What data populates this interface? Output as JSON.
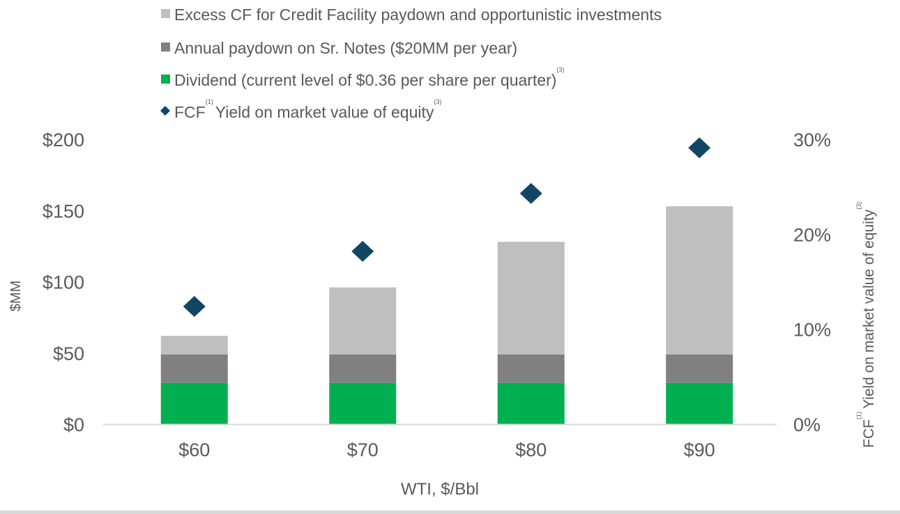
{
  "chart_data": {
    "type": "bar",
    "stacked": true,
    "xlabel": "WTI, $/Bbl",
    "ylabel": "$MM",
    "y2label": {
      "main": "FCF",
      "sup1": "(1)",
      "rest": "Yield on market value of equity",
      "sup3": "(3)"
    },
    "categories": [
      "$60",
      "$70",
      "$80",
      "$90"
    ],
    "ylim": [
      0,
      200
    ],
    "yticks": [
      "$0",
      "$50",
      "$100",
      "$150",
      "$200"
    ],
    "y2lim": [
      0,
      30
    ],
    "y2ticks": [
      "0%",
      "10%",
      "20%",
      "30%"
    ],
    "grid": false,
    "legend_position": "top",
    "series": [
      {
        "name": "Dividend (current level of $0.36 per share per quarter)",
        "sup": "(3)",
        "kind": "bar",
        "color": "#00b050",
        "values": [
          29,
          29,
          29,
          29
        ]
      },
      {
        "name": "Annual paydown on Sr. Notes ($20MM per year)",
        "kind": "bar",
        "color": "#808080",
        "values": [
          20,
          20,
          20,
          20
        ]
      },
      {
        "name": "Excess CF for Credit Facility paydown and opportunistic investments",
        "kind": "bar",
        "color": "#bfbfbf",
        "values": [
          13,
          47,
          79,
          104
        ]
      },
      {
        "name_pre": "FCF",
        "sup1": "(1)",
        "name_post": "Yield on market value of equity",
        "sup": "(3)",
        "kind": "scatter",
        "axis": "right",
        "marker": "diamond",
        "color": "#114663",
        "values": [
          12.4,
          18.2,
          24.3,
          29.1
        ]
      }
    ]
  }
}
